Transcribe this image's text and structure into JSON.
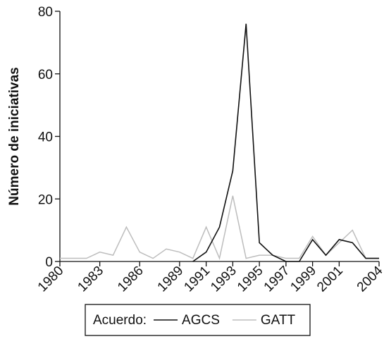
{
  "chart_data": {
    "type": "line",
    "ylabel": "Número de iniciativas",
    "xlabel": "",
    "x": [
      1980,
      1981,
      1982,
      1983,
      1984,
      1985,
      1986,
      1987,
      1988,
      1989,
      1990,
      1991,
      1992,
      1993,
      1994,
      1995,
      1996,
      1997,
      1998,
      1999,
      2000,
      2001,
      2002,
      2003,
      2004
    ],
    "x_tick_labels": [
      "1980",
      "1983",
      "1986",
      "1989",
      "1991",
      "1993",
      "1995",
      "1997",
      "1999",
      "2001",
      "2004"
    ],
    "x_tick_positions": [
      1980,
      1983,
      1986,
      1989,
      1991,
      1993,
      1995,
      1997,
      1999,
      2001,
      2004
    ],
    "y_ticks": [
      0,
      20,
      40,
      60,
      80
    ],
    "ylim": [
      0,
      80
    ],
    "xlim": [
      1980,
      2004
    ],
    "legend": {
      "title": "Acuerdo:",
      "placement": "bottom"
    },
    "series": [
      {
        "name": "AGCS",
        "color": "#111111",
        "x": [
          1990,
          1991,
          1992,
          1993,
          1994,
          1995,
          1996,
          1997,
          1998,
          1999,
          2000,
          2001,
          2002,
          2003,
          2004
        ],
        "values": [
          0,
          3,
          11,
          29,
          76,
          6,
          2,
          0,
          0,
          7,
          2,
          7,
          6,
          1,
          1
        ]
      },
      {
        "name": "GATT",
        "color": "#bdbdbd",
        "x": [
          1980,
          1981,
          1982,
          1983,
          1984,
          1985,
          1986,
          1987,
          1988,
          1989,
          1990,
          1991,
          1992,
          1993,
          1994,
          1995,
          1996,
          1997,
          1998,
          1999,
          2000,
          2001,
          2002,
          2003,
          2004
        ],
        "values": [
          1,
          1,
          1,
          3,
          2,
          11,
          3,
          1,
          4,
          3,
          1,
          11,
          1,
          21,
          1,
          2,
          2,
          1,
          1,
          8,
          2,
          6,
          10,
          1,
          1
        ]
      }
    ]
  }
}
